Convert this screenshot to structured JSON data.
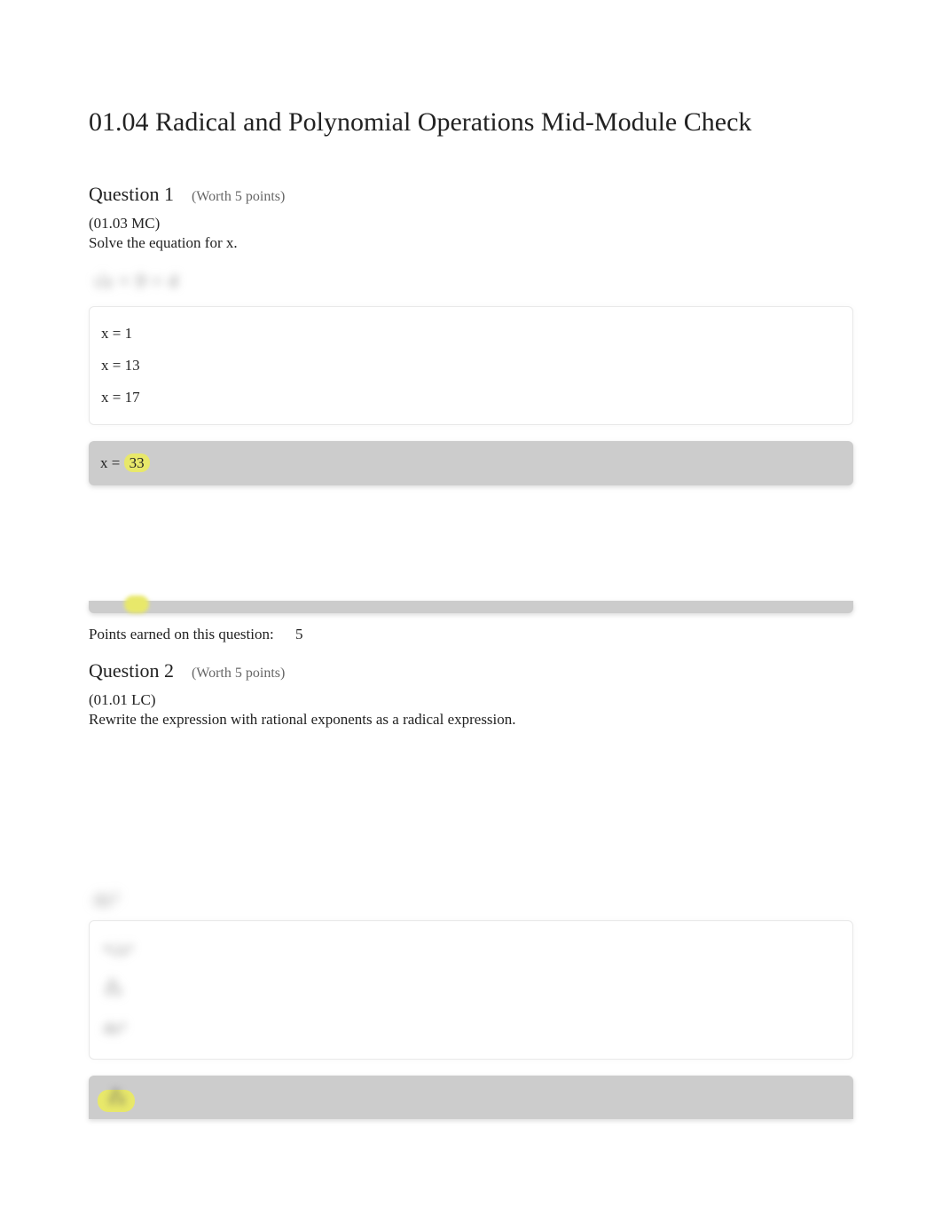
{
  "title": "01.04 Radical and Polynomial Operations Mid-Module Check",
  "question1": {
    "label": "Question 1",
    "worth": "(Worth 5 points)",
    "reference": "(01.03 MC)",
    "prompt": "Solve the equation for x.",
    "equation_blur": "√x + 9 = 4",
    "options": [
      "x = 1",
      "x = 13",
      "x = 17"
    ],
    "selected_prefix": "x = ",
    "selected_value": "33",
    "points_label": "Points earned on this question:",
    "points_value": "5"
  },
  "question2": {
    "label": "Question 2",
    "worth": "(Worth 5 points)",
    "reference": "(01.01 LC)",
    "prompt": "Rewrite the expression with rational exponents as a radical expression.",
    "expression_blur": "4x³",
    "options_blur": [
      "⁴√x³",
      "∛x",
      "4x³"
    ],
    "selected_blur": "∛x"
  },
  "colors": {
    "highlight": "#e8e86a",
    "selected_bg": "#cccccc",
    "text": "#222222",
    "muted": "#666666",
    "border": "#e8e8e8",
    "background": "#ffffff"
  }
}
